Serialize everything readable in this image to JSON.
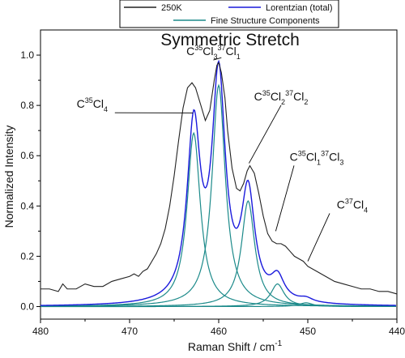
{
  "chart_data": {
    "type": "line",
    "title": "Symmetric Stretch",
    "xlabel": "Raman Shift / cm",
    "xlabel_superscript": "-1",
    "ylabel": "Normalized Intensity",
    "xlim": [
      480,
      440
    ],
    "ylim": [
      -0.05,
      1.1
    ],
    "x_reversed": true,
    "xticks": [
      480,
      470,
      460,
      450,
      440
    ],
    "xtick_labels": [
      "480",
      "470",
      "460",
      "450",
      "440"
    ],
    "yticks": [
      0.0,
      0.2,
      0.4,
      0.6,
      0.8,
      1.0
    ],
    "ytick_labels": [
      "0.0",
      "0.2",
      "0.4",
      "0.6",
      "0.8",
      "1.0"
    ],
    "grid": false,
    "legend_position": "top-center",
    "legend": [
      {
        "label": "250K",
        "color": "#222222"
      },
      {
        "label": "Lorentzian (total)",
        "color": "#1a1adc"
      },
      {
        "label": "Fine Structure Components",
        "color": "#1c8a8a"
      }
    ],
    "peaks": [
      {
        "name": "C35Cl4",
        "center": 462.8,
        "amplitude": 0.69,
        "width": 1.8
      },
      {
        "name": "C35Cl3 37Cl1",
        "center": 460.0,
        "amplitude": 0.88,
        "width": 1.8
      },
      {
        "name": "C35Cl2 37Cl2",
        "center": 456.7,
        "amplitude": 0.42,
        "width": 1.8
      },
      {
        "name": "C35Cl1 37Cl3",
        "center": 453.4,
        "amplitude": 0.09,
        "width": 1.8
      },
      {
        "name": "C37Cl4",
        "center": 450.2,
        "amplitude": 0.015,
        "width": 1.8
      }
    ],
    "series": [
      {
        "name": "250K",
        "color": "#222222",
        "x": [
          480,
          479,
          478,
          477.5,
          477,
          476,
          475,
          474,
          473,
          472,
          471,
          470,
          469.5,
          469,
          468.5,
          468,
          467.5,
          467,
          466.5,
          466,
          465.5,
          465,
          464.5,
          464,
          463.5,
          463,
          462.6,
          462,
          461.5,
          461,
          460.5,
          460.2,
          460,
          459.7,
          459.3,
          459,
          458.5,
          458,
          457.6,
          457.2,
          456.8,
          456.5,
          456,
          455.5,
          455,
          454.5,
          454,
          453.5,
          453,
          452.5,
          452,
          451.5,
          451,
          450.5,
          450,
          449,
          448,
          447,
          446,
          445,
          444,
          443,
          442,
          441,
          440
        ],
        "y": [
          0.07,
          0.07,
          0.06,
          0.09,
          0.07,
          0.07,
          0.09,
          0.08,
          0.08,
          0.1,
          0.11,
          0.12,
          0.13,
          0.12,
          0.14,
          0.15,
          0.18,
          0.21,
          0.25,
          0.31,
          0.4,
          0.52,
          0.66,
          0.79,
          0.87,
          0.89,
          0.87,
          0.8,
          0.74,
          0.78,
          0.9,
          0.96,
          0.97,
          0.93,
          0.83,
          0.7,
          0.55,
          0.47,
          0.46,
          0.49,
          0.54,
          0.56,
          0.53,
          0.45,
          0.36,
          0.29,
          0.26,
          0.25,
          0.25,
          0.24,
          0.22,
          0.2,
          0.19,
          0.18,
          0.16,
          0.14,
          0.12,
          0.1,
          0.09,
          0.08,
          0.07,
          0.07,
          0.06,
          0.06,
          0.05
        ]
      },
      {
        "name": "Lorentzian (total)",
        "color": "#1a1adc",
        "kind": "lorentzian_sum",
        "baseline": 0.0
      },
      {
        "name": "Fine Structure Components",
        "color": "#1c8a8a",
        "kind": "lorentzian_components"
      }
    ],
    "annotations": [
      {
        "parts": [
          [
            "C",
            ""
          ],
          [
            "35",
            "sup"
          ],
          [
            "Cl",
            ""
          ],
          [
            "3",
            "sub"
          ],
          [
            "37",
            "sup"
          ],
          [
            "Cl",
            ""
          ],
          [
            "1",
            "sub"
          ]
        ],
        "at": [
          460.6,
          1.0
        ],
        "target": [
          459.7,
          0.99
        ]
      },
      {
        "parts": [
          [
            "C",
            ""
          ],
          [
            "35",
            "sup"
          ],
          [
            "Cl",
            ""
          ],
          [
            "4",
            "sub"
          ]
        ],
        "at": [
          474.2,
          0.79
        ],
        "target": [
          462.9,
          0.77
        ]
      },
      {
        "parts": [
          [
            "C",
            ""
          ],
          [
            "35",
            "sup"
          ],
          [
            "Cl",
            ""
          ],
          [
            "2",
            "sub"
          ],
          [
            "37",
            "sup"
          ],
          [
            "Cl",
            ""
          ],
          [
            "2",
            "sub"
          ]
        ],
        "at": [
          453.0,
          0.82
        ],
        "target": [
          456.6,
          0.57
        ]
      },
      {
        "parts": [
          [
            "C",
            ""
          ],
          [
            "35",
            "sup"
          ],
          [
            "Cl",
            ""
          ],
          [
            "1",
            "sub"
          ],
          [
            "37",
            "sup"
          ],
          [
            "Cl",
            ""
          ],
          [
            "3",
            "sub"
          ]
        ],
        "at": [
          449.0,
          0.58
        ],
        "target": [
          453.6,
          0.3
        ]
      },
      {
        "parts": [
          [
            "C",
            ""
          ],
          [
            "37",
            "sup"
          ],
          [
            "Cl",
            ""
          ],
          [
            "4",
            "sub"
          ]
        ],
        "at": [
          445.0,
          0.39
        ],
        "target": [
          450.0,
          0.18
        ]
      }
    ]
  }
}
